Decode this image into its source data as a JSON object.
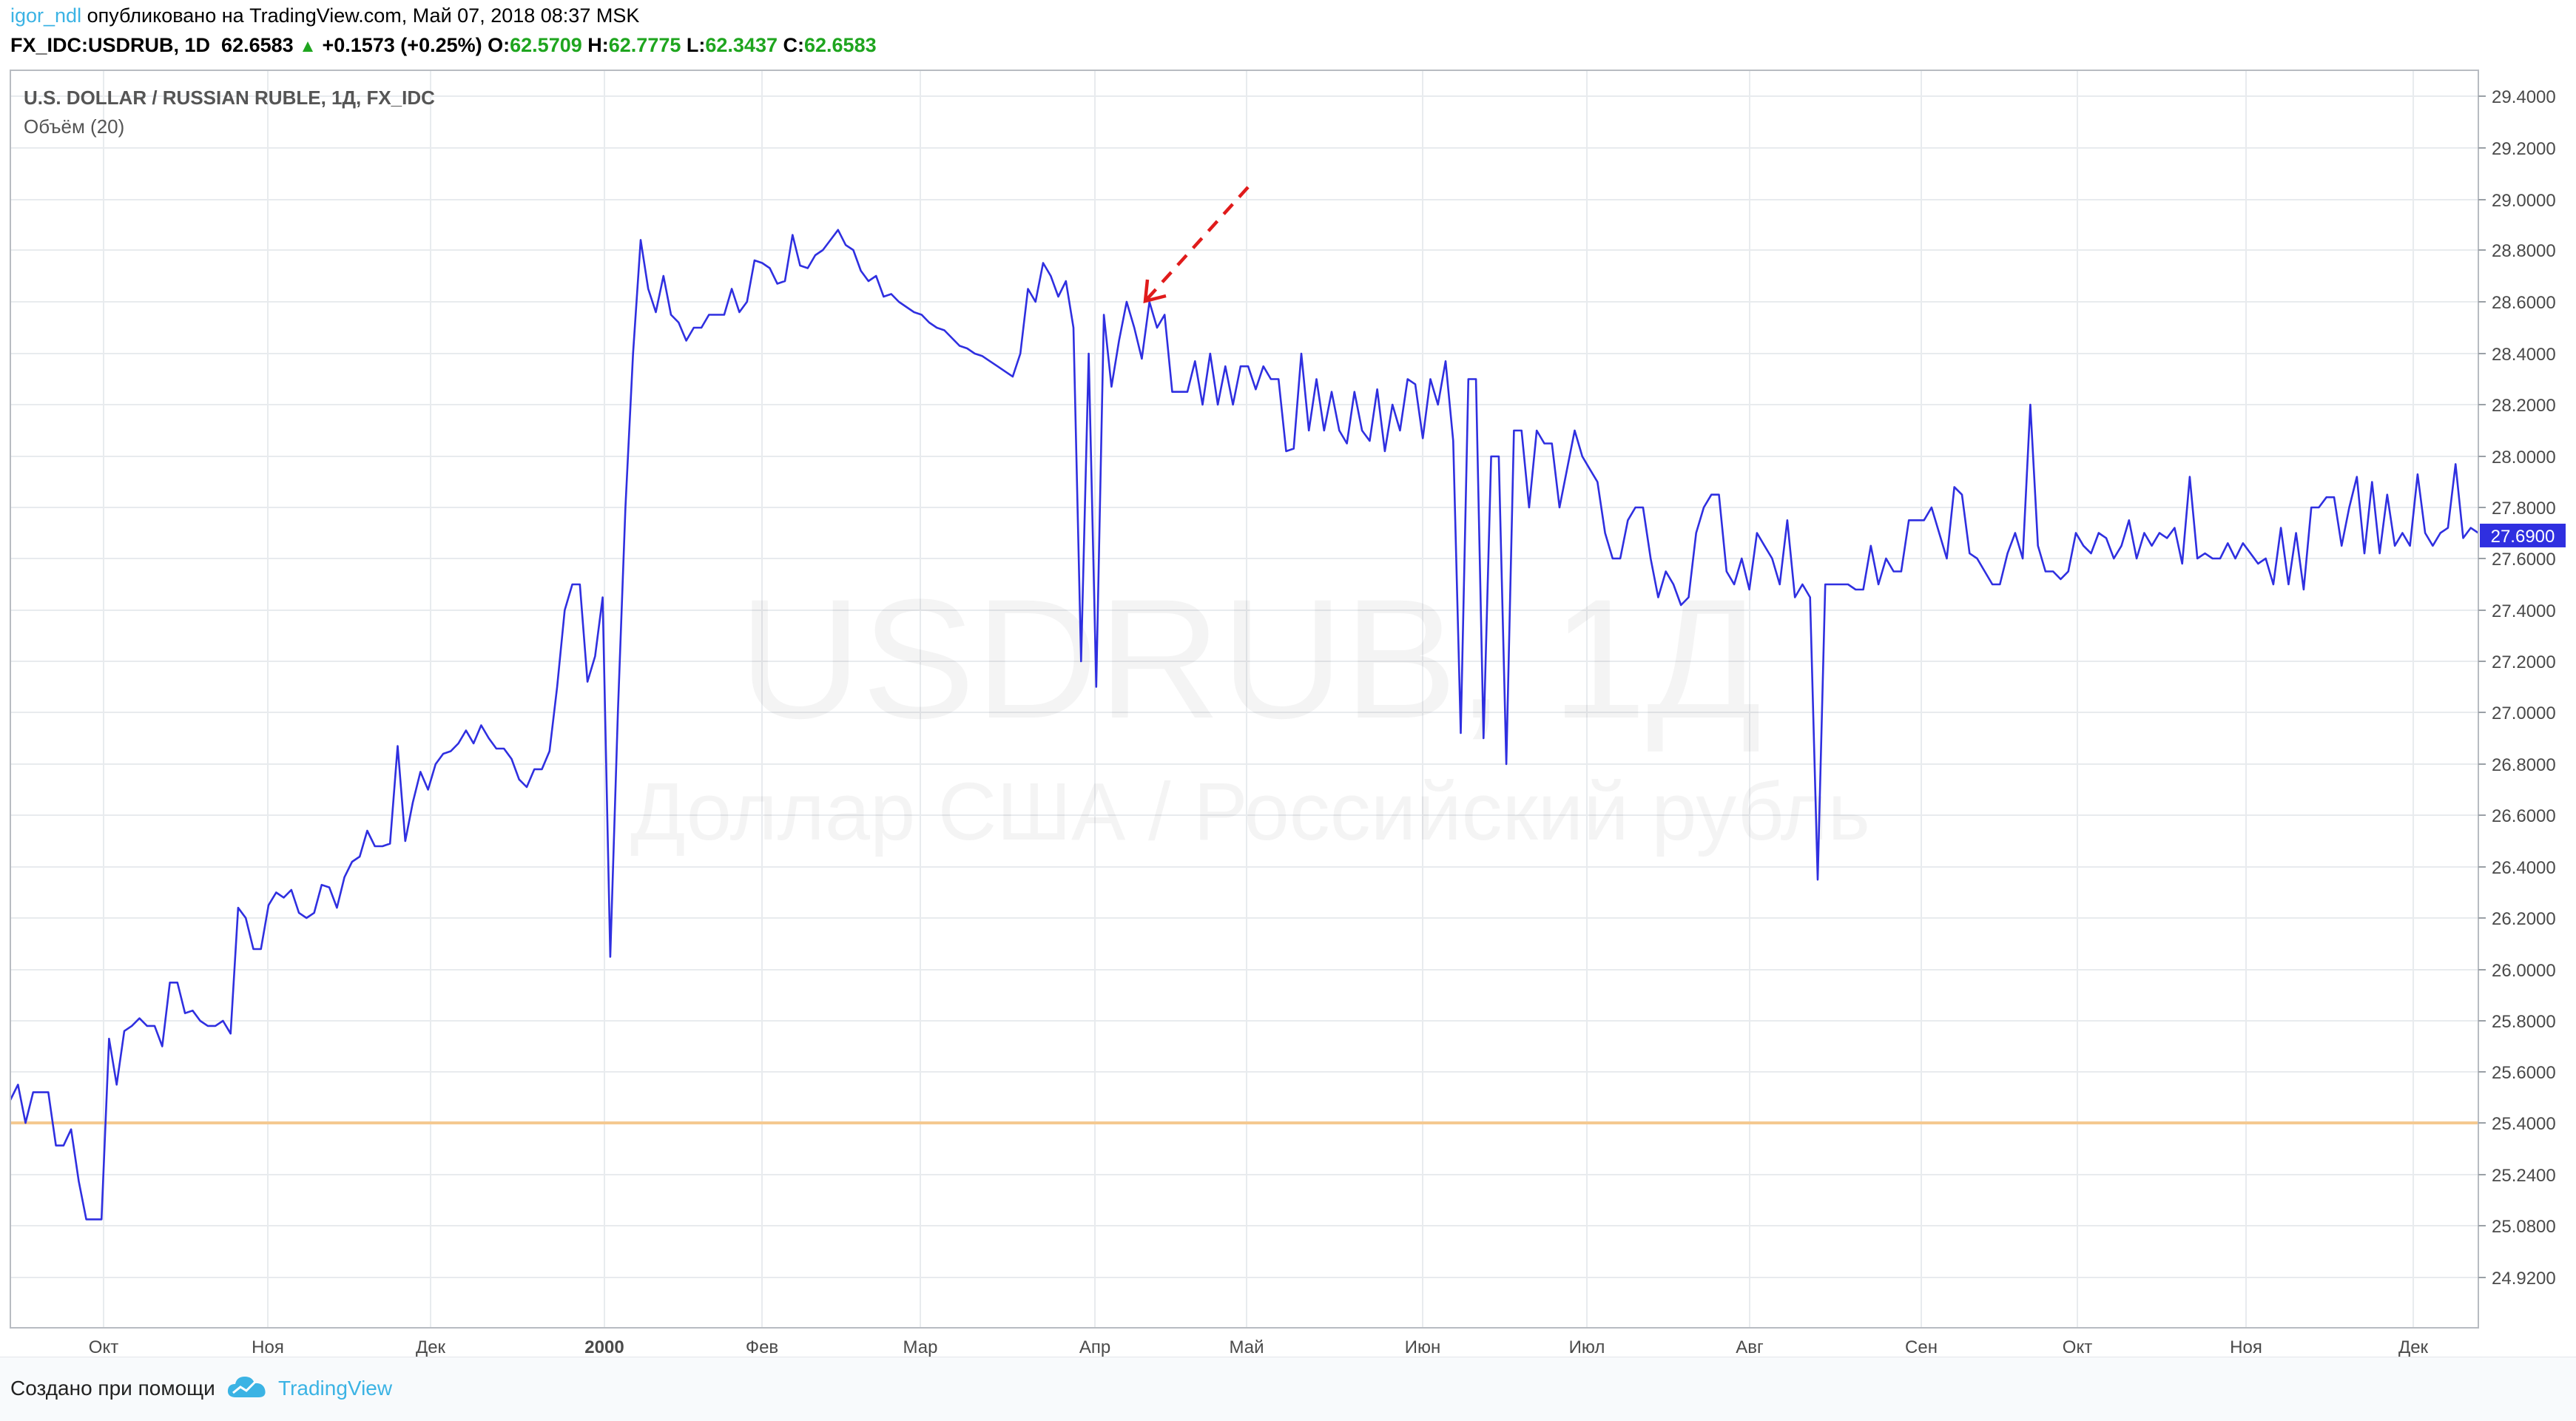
{
  "header": {
    "user": "igor_ndl",
    "published": "опубликовано на TradingView.com, Май 07, 2018 08:37 MSK",
    "symbol": "FX_IDC:USDRUB, 1D",
    "last": "62.6583",
    "change": "+0.1573 (+0.25%)",
    "o_label": "O:",
    "o_val": "62.5709",
    "h_label": "H:",
    "h_val": "62.7775",
    "l_label": "L:",
    "l_val": "62.3437",
    "c_label": "C:",
    "c_val": "62.6583"
  },
  "legend": {
    "title": "U.S. DOLLAR / RUSSIAN RUBLE, 1Д, FX_IDC",
    "volume": "Объём (20)"
  },
  "watermark": {
    "symbol": "USDRUB, 1Д",
    "description": "Доллар США / Российский рубль"
  },
  "footer": {
    "created_with": "Создано при помощи",
    "brand": "TradingView"
  },
  "colors": {
    "line": "#2f2fe0",
    "reference_line": "#f5c990",
    "price_tag": "#2f2fe0",
    "annotation_arrow": "#e01b1b",
    "grid": "#e8ebee"
  },
  "chart_data": {
    "type": "line",
    "ylim": [
      24.92,
      29.4
    ],
    "y_ticks": [
      "29.4000",
      "29.2000",
      "29.0000",
      "28.8000",
      "28.6000",
      "28.4000",
      "28.2000",
      "28.0000",
      "27.8000",
      "27.6000",
      "27.4000",
      "27.2000",
      "27.0000",
      "26.8000",
      "26.6000",
      "26.4000",
      "26.2000",
      "26.0000",
      "25.8000",
      "25.6000",
      "25.4000",
      "25.2400",
      "25.0800",
      "24.9200"
    ],
    "x_ticks": [
      "Окт",
      "Ноя",
      "Дек",
      "2000",
      "Фев",
      "Мар",
      "Апр",
      "Май",
      "Июн",
      "Июл",
      "Авг",
      "Сен",
      "Окт",
      "Ноя",
      "Дек"
    ],
    "last_price_label": "27.6900",
    "last_price": 27.69,
    "reference_level": 25.4,
    "grid": true,
    "series": [
      {
        "values": [
          25.49,
          25.55,
          25.4,
          25.52,
          25.52,
          25.52,
          25.33,
          25.33,
          25.38,
          25.22,
          25.1,
          25.1,
          25.1,
          25.73,
          25.55,
          25.76,
          25.78,
          25.81,
          25.78,
          25.78,
          25.7,
          25.95,
          25.95,
          25.83,
          25.84,
          25.8,
          25.78,
          25.78,
          25.8,
          25.75,
          26.24,
          26.2,
          26.08,
          26.08,
          26.25,
          26.3,
          26.28,
          26.31,
          26.22,
          26.2,
          26.22,
          26.33,
          26.32,
          26.24,
          26.36,
          26.42,
          26.44,
          26.54,
          26.48,
          26.48,
          26.49,
          26.87,
          26.5,
          26.65,
          26.77,
          26.7,
          26.8,
          26.84,
          26.85,
          26.88,
          26.93,
          26.88,
          26.95,
          26.9,
          26.86,
          26.86,
          26.82,
          26.74,
          26.71,
          26.78,
          26.78,
          26.85,
          27.1,
          27.4,
          27.5,
          27.5,
          27.12,
          27.22,
          27.45,
          26.05,
          27.0,
          27.8,
          28.4,
          28.84,
          28.65,
          28.56,
          28.7,
          28.55,
          28.52,
          28.45,
          28.5,
          28.5,
          28.55,
          28.55,
          28.55,
          28.65,
          28.56,
          28.6,
          28.76,
          28.75,
          28.73,
          28.67,
          28.68,
          28.86,
          28.74,
          28.73,
          28.78,
          28.8,
          28.84,
          28.88,
          28.82,
          28.8,
          28.72,
          28.68,
          28.7,
          28.62,
          28.63,
          28.6,
          28.58,
          28.56,
          28.55,
          28.52,
          28.5,
          28.49,
          28.46,
          28.43,
          28.42,
          28.4,
          28.39,
          28.37,
          28.35,
          28.33,
          28.31,
          28.4,
          28.65,
          28.6,
          28.75,
          28.7,
          28.62,
          28.68,
          28.5,
          27.2,
          28.4,
          27.1,
          28.55,
          28.27,
          28.45,
          28.6,
          28.5,
          28.38,
          28.6,
          28.5,
          28.55,
          28.25,
          28.25,
          28.25,
          28.37,
          28.2,
          28.4,
          28.2,
          28.35,
          28.2,
          28.35,
          28.35,
          28.26,
          28.35,
          28.3,
          28.3,
          28.02,
          28.03,
          28.4,
          28.1,
          28.3,
          28.1,
          28.25,
          28.1,
          28.05,
          28.25,
          28.1,
          28.06,
          28.26,
          28.02,
          28.2,
          28.1,
          28.3,
          28.28,
          28.07,
          28.3,
          28.2,
          28.37,
          28.06,
          26.92,
          28.3,
          28.3,
          26.9,
          28.0,
          28.0,
          26.8,
          28.1,
          28.1,
          27.8,
          28.1,
          28.05,
          28.05,
          27.8,
          27.95,
          28.1,
          28.0,
          27.95,
          27.9,
          27.7,
          27.6,
          27.6,
          27.75,
          27.8,
          27.8,
          27.6,
          27.45,
          27.55,
          27.5,
          27.42,
          27.45,
          27.7,
          27.8,
          27.85,
          27.85,
          27.55,
          27.5,
          27.6,
          27.48,
          27.7,
          27.65,
          27.6,
          27.5,
          27.75,
          27.45,
          27.5,
          27.45,
          26.35,
          27.5,
          27.5,
          27.5,
          27.5,
          27.48,
          27.48,
          27.65,
          27.5,
          27.6,
          27.55,
          27.55,
          27.75,
          27.75,
          27.75,
          27.8,
          27.7,
          27.6,
          27.88,
          27.85,
          27.62,
          27.6,
          27.55,
          27.5,
          27.5,
          27.62,
          27.7,
          27.6,
          28.2,
          27.65,
          27.55,
          27.55,
          27.52,
          27.55,
          27.7,
          27.65,
          27.62,
          27.7,
          27.68,
          27.6,
          27.65,
          27.75,
          27.6,
          27.7,
          27.65,
          27.7,
          27.68,
          27.72,
          27.58,
          27.92,
          27.6,
          27.62,
          27.6,
          27.6,
          27.66,
          27.6,
          27.66,
          27.62,
          27.58,
          27.6,
          27.5,
          27.72,
          27.5,
          27.7,
          27.48,
          27.8,
          27.8,
          27.84,
          27.84,
          27.65,
          27.8,
          27.92,
          27.62,
          27.9,
          27.62,
          27.85,
          27.65,
          27.7,
          27.65,
          27.93,
          27.7,
          27.65,
          27.7,
          27.72,
          27.97,
          27.68,
          27.72,
          27.7
        ]
      }
    ]
  }
}
